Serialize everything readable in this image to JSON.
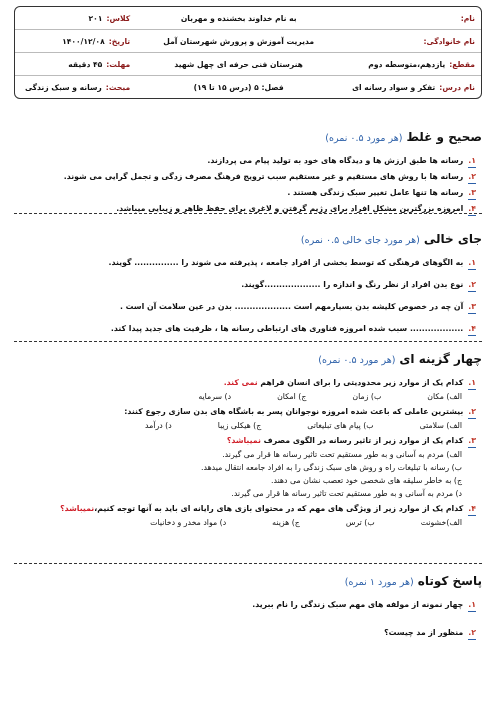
{
  "header": {
    "rows": [
      {
        "right": {
          "label": "نام:"
        },
        "center": "به نام خداوند بخشنده و مهربان",
        "left": {
          "label": "کلاس:",
          "value": "۲۰۱"
        }
      },
      {
        "right": {
          "label": "نام خانوادگی:"
        },
        "center": "مدیریت آموزش و پرورش شهرستان آمل",
        "left": {
          "label": "تاریخ:",
          "value": "۱۴۰۰/۱۲/۰۸"
        }
      },
      {
        "right": {
          "label": "مقطع:",
          "value": "یازدهم،متوسطه دوم"
        },
        "center": "هنرستان فنی حرفه ای چهل شهید",
        "left": {
          "label": "مهلت:",
          "value": "۴۵ دقیقه"
        }
      },
      {
        "right": {
          "label": "نام درس:",
          "value": "تفکر و سواد رسانه ای"
        },
        "center": "فصل: ۵ (درس ۱۵ تا ۱۹)",
        "left": {
          "label": "مبحث:",
          "value": "رسانه و سبک زندگی"
        }
      }
    ]
  },
  "sections": [
    {
      "title": "صحیح و غلط",
      "score": "(هر مورد ۰.۵ نمره)",
      "questions": [
        {
          "number": "۱.",
          "text": "رسانه ها طبق ارزش ها و دیدگاه های خود به تولید پیام می پردازند."
        },
        {
          "number": "۲.",
          "text": "رسانه ها با روش های مستقیم و غیر مستقیم سبب ترویج فرهنگ مصرف زدگی و تجمل گرایی می شوند."
        },
        {
          "number": "۳.",
          "text": "رسانه ها تنها عامل تغییر سبک زندگی هستند ."
        },
        {
          "number": "۴.",
          "text": "امروزه بزرگترین مشکل افراد برای رژیم گرفتن و لاغری برای حفظ ظاهر و زیبایی میباشد."
        }
      ]
    },
    {
      "title": "جای خالی",
      "score": "(هر مورد جای خالی ۰.۵ نمره)",
      "questions": [
        {
          "number": "۱.",
          "text": "به الگوهای فرهنگی که توسط بخشی از افراد جامعه ، پذیرفته می شوند را ............... گویند."
        },
        {
          "number": "۲.",
          "text": "نوع بدن افراد از نظر رنگ و اندازه را ...................گویند."
        },
        {
          "number": "۳.",
          "text": "آن چه در خصوص کلیشه بدن بسیارمهم است ................... بدن در عین سلامت آن است ."
        },
        {
          "number": "۴.",
          "text": ".................. سبب شده امروزه فناوری های ارتباطی رسانه ها ، ظرفیت های جدید پیدا کند."
        }
      ]
    },
    {
      "title": "چهار گزینه ای",
      "score": "(هر مورد ۰.۵ نمره)",
      "questions": [
        {
          "number": "۱.",
          "text": "کدام یک از موارد زیر محدودیتی را برای انسان فراهم ",
          "emphasis": "نمی کند.",
          "options": [
            "الف) مکان",
            "ب) زمان",
            "ج) امکان",
            "د) سرمایه"
          ]
        },
        {
          "number": "۲.",
          "text": "بیشترین عاملی که باعث شده امروزه نوجوانان پسر به باشگاه های بدن سازی رجوع کنند:",
          "options": [
            "الف) سلامتی",
            "ب) پیام های تبلیغاتی",
            "ج) هیکلی زیبا",
            "د) درآمد"
          ]
        },
        {
          "number": "۳.",
          "text": "کدام یک از موارد زیر از تاثیر رسانه در الگوی مصرف ",
          "emphasis": "نمیباشد؟",
          "options": [
            "الف) مردم به آسانی و به طور مستقیم تحت تاثیر رسانه ها قرار می گیرند.",
            "ب) رسانه با تبلیغات راه و روش های سبک زندگی  را به افراد جامعه انتقال میدهد.",
            "ج) به خاطر سلیقه های شخصی خود تعصب نشان می دهند.",
            "د) مردم به آسانی و به طور مستقیم تحت  تاثیر رسانه ها قرار می گیرند."
          ]
        },
        {
          "number": "۴.",
          "text": "کدام یک از موارد زیر از ویژگی های مهم که در محتوای بازی های رایانه ای باید به آنها توجه کنیم،",
          "emphasis": "نمیباشد؟",
          "options": [
            "الف)خشونت",
            "ب) ترس",
            "ج) هزینه",
            "د) مواد مخدر و دخانیات"
          ]
        }
      ]
    },
    {
      "title": "پاسخ کوتاه",
      "score": "(هر مورد ۱ نمره)",
      "questions": [
        {
          "number": "۱.",
          "text": "چهار نمونه از مولفه های مهم سبک زندگی را نام ببرید."
        },
        {
          "number": "۲.",
          "text": "منظور از مد چیست؟"
        }
      ]
    }
  ]
}
